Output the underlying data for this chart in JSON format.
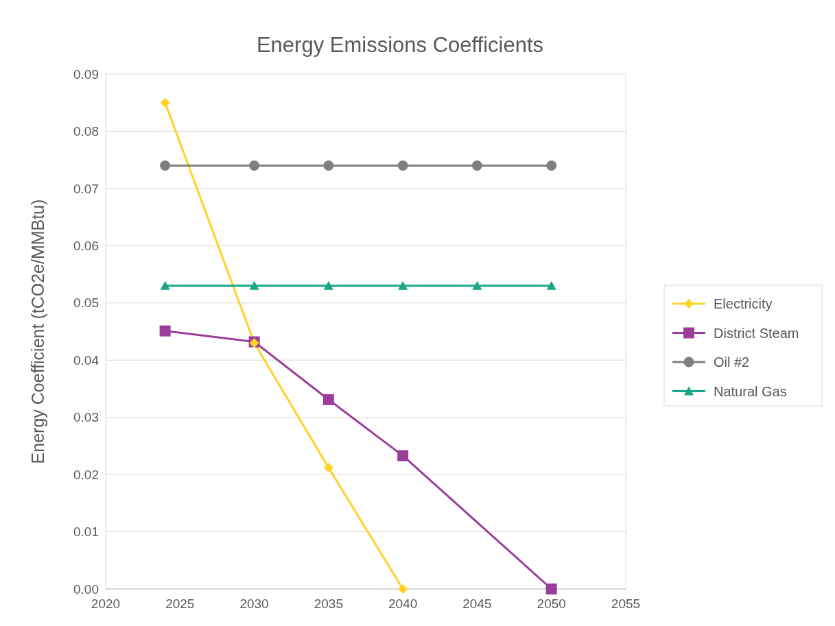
{
  "chart_data": {
    "type": "line",
    "title": "Energy Emissions Coefficients",
    "ylabel": "Energy Coefficient (tCO2e/MMBtu)",
    "xlim": [
      2020,
      2055
    ],
    "xticks": [
      2020,
      2025,
      2030,
      2035,
      2040,
      2045,
      2050,
      2055
    ],
    "ylim": [
      0,
      0.09
    ],
    "yticks": [
      {
        "value": 0,
        "label": "0.00"
      },
      {
        "value": 0.01,
        "label": "0.01"
      },
      {
        "value": 0.02,
        "label": "0.02"
      },
      {
        "value": 0.03,
        "label": "0.03"
      },
      {
        "value": 0.04,
        "label": "0.04"
      },
      {
        "value": 0.05,
        "label": "0.05"
      },
      {
        "value": 0.06,
        "label": "0.06"
      },
      {
        "value": 0.07,
        "label": "0.07"
      },
      {
        "value": 0.08,
        "label": "0.08"
      },
      {
        "value": 0.09,
        "label": "0.09"
      }
    ],
    "grid": "y",
    "legend": "right",
    "series": [
      {
        "name": "Electricity",
        "color": "#ffd324",
        "marker": "diamond",
        "x": [
          2024,
          2030,
          2035,
          2040
        ],
        "values": [
          0.085,
          0.043,
          0.0212,
          0
        ]
      },
      {
        "name": "District Steam",
        "color": "#9b3d9b",
        "marker": "square",
        "x": [
          2024,
          2030,
          2035,
          2040,
          2050
        ],
        "values": [
          0.0451,
          0.0432,
          0.0331,
          0.0233,
          0
        ]
      },
      {
        "name": "Oil #2",
        "color": "#7f7f7f",
        "marker": "circle",
        "x": [
          2024,
          2030,
          2035,
          2040,
          2045,
          2050
        ],
        "values": [
          0.074,
          0.074,
          0.074,
          0.074,
          0.074,
          0.074
        ]
      },
      {
        "name": "Natural Gas",
        "color": "#1aa68a",
        "marker": "triangle",
        "x": [
          2024,
          2030,
          2035,
          2040,
          2045,
          2050
        ],
        "values": [
          0.053,
          0.053,
          0.053,
          0.053,
          0.053,
          0.053
        ]
      }
    ]
  }
}
